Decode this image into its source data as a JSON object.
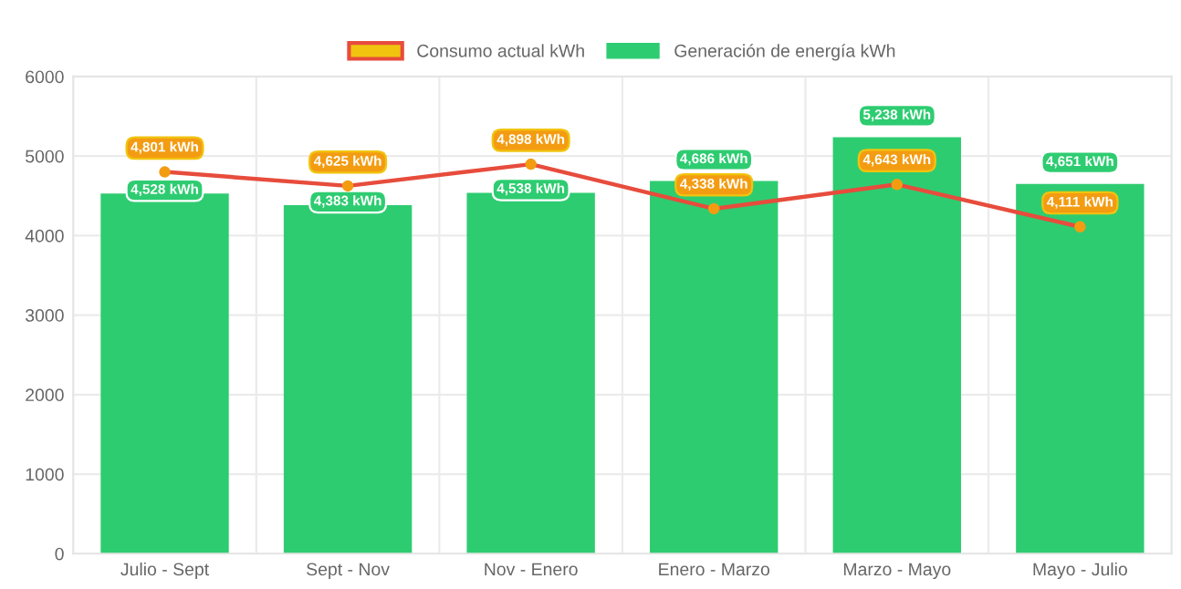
{
  "chart_data": {
    "type": "bar",
    "categories": [
      "Julio - Sept",
      "Sept - Nov",
      "Nov - Enero",
      "Enero - Marzo",
      "Marzo - Mayo",
      "Mayo - Julio"
    ],
    "series": [
      {
        "name": "Consumo actual kWh",
        "type": "line",
        "color": "#e74c3c",
        "marker": "circle",
        "values": [
          4801,
          4625,
          4898,
          4338,
          4643,
          4111
        ],
        "value_labels": [
          "4,801 kWh",
          "4,625 kWh",
          "4,898 kWh",
          "4,338 kWh",
          "4,643 kWh",
          "4,111 kWh"
        ]
      },
      {
        "name": "Generación de energía kWh",
        "color": "#2ecc71",
        "values": [
          4528,
          4383,
          4538,
          4686,
          5238,
          4651
        ],
        "value_labels": [
          "4,528 kWh",
          "4,383 kWh",
          "4,538 kWh",
          "4,686 kWh",
          "5,238 kWh",
          "4,651 kWh"
        ]
      }
    ],
    "ylim": [
      0,
      6000
    ],
    "yticks": [
      0,
      1000,
      2000,
      3000,
      4000,
      5000,
      6000
    ],
    "grid": true,
    "legend": "top"
  }
}
